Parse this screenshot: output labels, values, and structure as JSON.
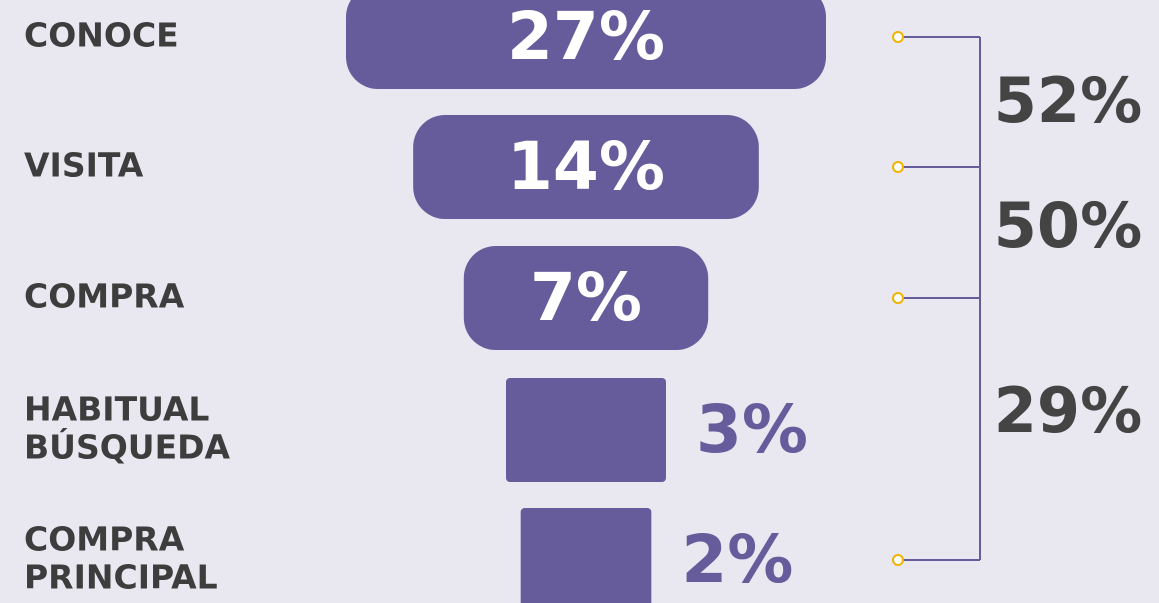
{
  "chart_data": {
    "type": "funnel",
    "categories": [
      [
        "CONOCE"
      ],
      [
        "VISITA"
      ],
      [
        "COMPRA"
      ],
      [
        "HABITUAL",
        "BÚSQUEDA"
      ],
      [
        "COMPRA",
        "PRINCIPAL"
      ]
    ],
    "values": [
      27,
      14,
      7,
      3,
      2
    ],
    "value_labels": [
      "27%",
      "14%",
      "7%",
      "3%",
      "2%"
    ],
    "color": "#675c9b",
    "conversions": {
      "values": [
        52,
        50,
        29
      ],
      "value_labels": [
        "52%",
        "50%",
        "29%"
      ]
    }
  }
}
